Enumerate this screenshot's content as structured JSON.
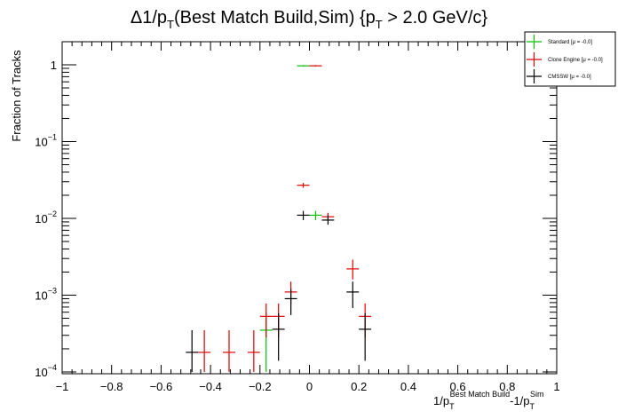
{
  "chart_data": {
    "type": "scatter",
    "title_parts": {
      "delta": "Δ",
      "pre": "1/p",
      "sub1": "T",
      "mid": "(Best Match Build,Sim) {p",
      "sub2": "T",
      "post": " > 2.0 GeV/c}"
    },
    "ylabel": "Fraction of Tracks",
    "xlabel_parts": {
      "p1": "1/p",
      "sub1": "T",
      "sup1": "Best Match Build",
      "p2": "-1/p",
      "sub2": "T",
      "sup2": "Sim"
    },
    "xlim": [
      -1,
      1
    ],
    "ylim": [
      0.0001,
      2
    ],
    "yscale": "log",
    "grid": false,
    "legend_placement": "top-right",
    "x_ticks": [
      "−1",
      "−0.8",
      "−0.6",
      "−0.4",
      "−0.2",
      "0",
      "0.2",
      "0.4",
      "0.6",
      "0.8",
      "1"
    ],
    "y_ticks": [
      {
        "base": "1",
        "exp": ""
      },
      {
        "base": "10",
        "exp": "−1"
      },
      {
        "base": "10",
        "exp": "−2"
      },
      {
        "base": "10",
        "exp": "−3"
      },
      {
        "base": "10",
        "exp": "−4"
      }
    ],
    "bin_half_width": 0.025,
    "series": [
      {
        "name": "Standard",
        "stat": "[μ = -0.0]",
        "color": "#00c000",
        "points": [
          {
            "x": -0.175,
            "y": 0.00035,
            "ylo": 0.0001,
            "yhi": 0.0006
          },
          {
            "x": -0.025,
            "y": 0.97,
            "ylo": 0.95,
            "yhi": 0.99
          },
          {
            "x": 0.025,
            "y": 0.011,
            "ylo": 0.0095,
            "yhi": 0.0125
          }
        ]
      },
      {
        "name": "Clone Engine",
        "stat": "[μ = -0.0]",
        "color": "#e00000",
        "points": [
          {
            "x": -0.425,
            "y": 0.00018,
            "ylo": 0.0001,
            "yhi": 0.00035
          },
          {
            "x": -0.325,
            "y": 0.00018,
            "ylo": 0.0001,
            "yhi": 0.00035
          },
          {
            "x": -0.225,
            "y": 0.00018,
            "ylo": 0.0001,
            "yhi": 0.00035
          },
          {
            "x": -0.175,
            "y": 0.00053,
            "ylo": 0.00028,
            "yhi": 0.00078
          },
          {
            "x": -0.125,
            "y": 0.00053,
            "ylo": 0.00028,
            "yhi": 0.00078
          },
          {
            "x": -0.075,
            "y": 0.0011,
            "ylo": 0.00075,
            "yhi": 0.0015
          },
          {
            "x": -0.025,
            "y": 0.027,
            "ylo": 0.025,
            "yhi": 0.029
          },
          {
            "x": 0.025,
            "y": 0.97,
            "ylo": 0.95,
            "yhi": 0.99
          },
          {
            "x": 0.075,
            "y": 0.0105,
            "ylo": 0.0095,
            "yhi": 0.0118
          },
          {
            "x": 0.175,
            "y": 0.0022,
            "ylo": 0.0016,
            "yhi": 0.0029
          },
          {
            "x": 0.225,
            "y": 0.00053,
            "ylo": 0.00028,
            "yhi": 0.00078
          }
        ]
      },
      {
        "name": "CMSSW",
        "stat": "[μ = -0.0]",
        "color": "#000000",
        "points": [
          {
            "x": -0.475,
            "y": 0.00018,
            "ylo": 0.0001,
            "yhi": 0.00035
          },
          {
            "x": -0.125,
            "y": 0.00036,
            "ylo": 0.00014,
            "yhi": 0.00058
          },
          {
            "x": -0.075,
            "y": 0.0009,
            "ylo": 0.00055,
            "yhi": 0.0012
          },
          {
            "x": -0.025,
            "y": 0.011,
            "ylo": 0.0095,
            "yhi": 0.0125
          },
          {
            "x": 0.075,
            "y": 0.0095,
            "ylo": 0.0083,
            "yhi": 0.011
          },
          {
            "x": 0.175,
            "y": 0.0011,
            "ylo": 0.00068,
            "yhi": 0.0015
          },
          {
            "x": 0.225,
            "y": 0.00036,
            "ylo": 0.00014,
            "yhi": 0.00058
          }
        ]
      }
    ]
  }
}
